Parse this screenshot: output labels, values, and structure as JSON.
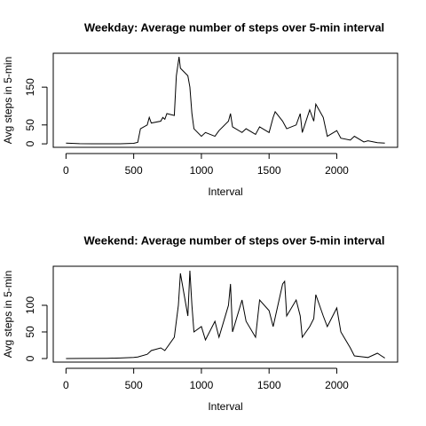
{
  "chart_data": [
    {
      "type": "line",
      "title": "Weekday: Average number of steps over 5-min interval",
      "x_label": "Interval",
      "y_label": "Avg steps in 5-min",
      "x": [
        0,
        100,
        200,
        300,
        400,
        500,
        530,
        550,
        600,
        615,
        630,
        700,
        715,
        730,
        745,
        800,
        815,
        835,
        845,
        900,
        915,
        930,
        945,
        1000,
        1030,
        1100,
        1130,
        1200,
        1215,
        1230,
        1300,
        1330,
        1400,
        1430,
        1500,
        1530,
        1545,
        1600,
        1630,
        1700,
        1730,
        1745,
        1800,
        1830,
        1845,
        1900,
        1930,
        2000,
        2030,
        2100,
        2130,
        2200,
        2230,
        2300,
        2355
      ],
      "series": [
        {
          "name": "Weekday",
          "color": "#000000",
          "values": [
            2,
            0.5,
            0.3,
            0.1,
            0.2,
            1.5,
            4,
            40,
            50,
            70,
            55,
            60,
            70,
            65,
            80,
            75,
            180,
            230,
            200,
            180,
            150,
            80,
            40,
            20,
            30,
            20,
            35,
            60,
            80,
            45,
            30,
            40,
            25,
            45,
            30,
            70,
            85,
            60,
            40,
            50,
            80,
            30,
            90,
            60,
            105,
            70,
            20,
            35,
            15,
            10,
            20,
            5,
            8,
            3,
            2
          ]
        }
      ],
      "xlim": [
        -94.2,
        2449.2
      ],
      "xticks": [
        0,
        500,
        1000,
        1500,
        2000
      ],
      "ylim": [
        -9.2,
        239.6
      ],
      "yticks": [
        0,
        50,
        150
      ]
    },
    {
      "type": "line",
      "title": "Weekend: Average number of steps over 5-min interval",
      "x_label": "Interval",
      "y_label": "Avg steps in 5-min",
      "x": [
        0,
        100,
        300,
        400,
        500,
        530,
        600,
        630,
        700,
        730,
        800,
        830,
        845,
        900,
        915,
        930,
        945,
        1000,
        1030,
        1100,
        1130,
        1200,
        1215,
        1230,
        1300,
        1330,
        1400,
        1430,
        1500,
        1530,
        1600,
        1615,
        1630,
        1700,
        1730,
        1745,
        1800,
        1830,
        1845,
        1900,
        1930,
        2000,
        2030,
        2100,
        2130,
        2200,
        2230,
        2300,
        2330,
        2355
      ],
      "series": [
        {
          "name": "Weekend",
          "color": "#000000",
          "values": [
            0,
            0.2,
            0.5,
            1,
            2,
            3,
            8,
            15,
            20,
            15,
            40,
            100,
            160,
            80,
            165,
            100,
            50,
            60,
            35,
            70,
            40,
            100,
            140,
            50,
            110,
            70,
            40,
            110,
            90,
            60,
            140,
            145,
            80,
            110,
            80,
            40,
            60,
            75,
            120,
            80,
            60,
            95,
            50,
            20,
            5,
            3,
            2,
            10,
            5,
            1
          ]
        }
      ],
      "xlim": [
        -94.2,
        2449.2
      ],
      "xticks": [
        0,
        500,
        1000,
        1500,
        2000
      ],
      "ylim": [
        -6.66,
        173.3
      ],
      "yticks": [
        0,
        50,
        100
      ]
    }
  ]
}
